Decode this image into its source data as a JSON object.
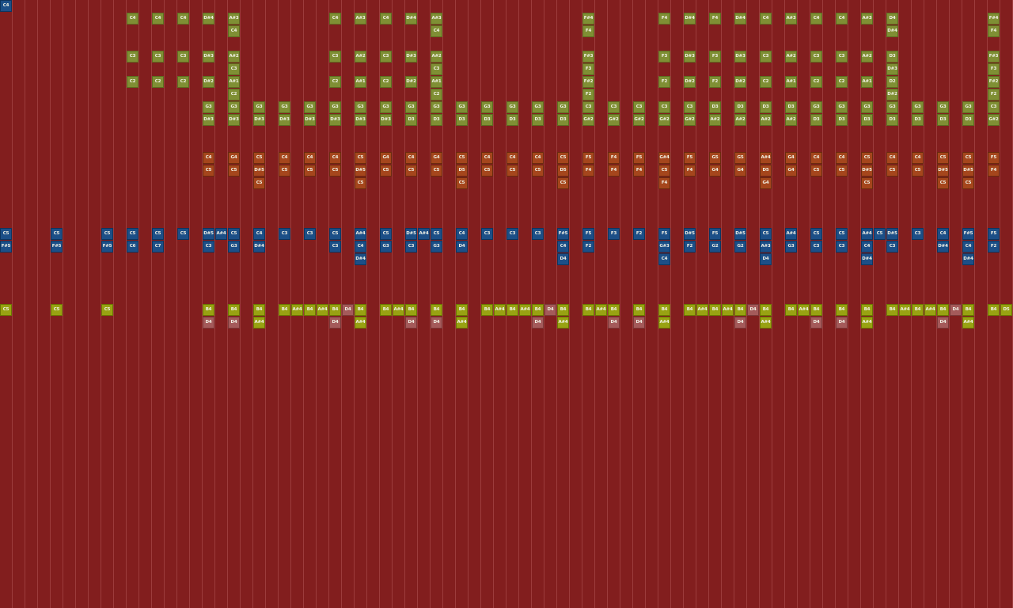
{
  "colors": {
    "background": "#821e1e",
    "green": "#7f8f34",
    "orange": "#a5461c",
    "blue": "#1c4f87",
    "yellow": "#98a212",
    "pink": "#a45a5a"
  },
  "lanes": [
    {
      "lane": 0,
      "kind": "blue",
      "cells": {
        "0": "C4"
      }
    },
    {
      "lane": 1,
      "kind": "green",
      "cells": {
        "10": "C4",
        "12": "C4",
        "14": "C4",
        "16": "D#4",
        "18": "A#3",
        "26": "C4",
        "28": "A#3",
        "30": "C4",
        "32": "D#4",
        "34": "A#3",
        "46": "F#4",
        "52": "F4",
        "54": "D#4",
        "56": "F4",
        "58": "D#4",
        "60": "C4",
        "62": "A#3",
        "64": "C4",
        "66": "C4",
        "68": "A#3",
        "70": "D4",
        "78": "F#4"
      }
    },
    {
      "lane": 2,
      "kind": "green",
      "cells": {
        "18": "C4",
        "34": "C4",
        "46": "F4",
        "70": "D#4",
        "78": "F4"
      }
    },
    {
      "lane": 4,
      "kind": "green",
      "cells": {
        "10": "C3",
        "12": "C3",
        "14": "C3",
        "16": "D#3",
        "18": "A#2",
        "26": "C3",
        "28": "A#2",
        "30": "C3",
        "32": "D#3",
        "34": "A#2",
        "46": "F#3",
        "52": "F3",
        "54": "D#3",
        "56": "F3",
        "58": "D#3",
        "60": "C3",
        "62": "A#2",
        "64": "C3",
        "66": "C3",
        "68": "A#2",
        "70": "D3",
        "78": "F#3"
      }
    },
    {
      "lane": 5,
      "kind": "green",
      "cells": {
        "18": "C3",
        "34": "C3",
        "46": "F3",
        "70": "D#3",
        "78": "F3"
      }
    },
    {
      "lane": 6,
      "kind": "green",
      "cells": {
        "10": "C2",
        "12": "C2",
        "14": "C2",
        "16": "D#2",
        "18": "A#1",
        "26": "C2",
        "28": "A#1",
        "30": "C2",
        "32": "D#2",
        "34": "A#1",
        "46": "F#2",
        "52": "F2",
        "54": "D#2",
        "56": "F2",
        "58": "D#2",
        "60": "C2",
        "62": "A#1",
        "64": "C2",
        "66": "C2",
        "68": "A#1",
        "70": "D2",
        "78": "F#2"
      }
    },
    {
      "lane": 7,
      "kind": "green",
      "cells": {
        "18": "C2",
        "34": "C2",
        "46": "F2",
        "70": "D#2",
        "78": "F2"
      }
    },
    {
      "lane": 8,
      "kind": "green",
      "cells": {
        "16": "G3",
        "18": "G3",
        "20": "G3",
        "22": "G3",
        "24": "G3",
        "26": "G3",
        "28": "G3",
        "30": "G3",
        "32": "G3",
        "34": "G3",
        "36": "G3",
        "38": "G3",
        "40": "G3",
        "42": "G3",
        "44": "G3",
        "46": "C3",
        "48": "C3",
        "50": "C3",
        "52": "C3",
        "54": "C3",
        "56": "D3",
        "58": "D3",
        "60": "D3",
        "62": "D3",
        "64": "G3",
        "66": "G3",
        "68": "G3",
        "70": "G3",
        "72": "G3",
        "74": "G3",
        "76": "G3",
        "78": "C3"
      }
    },
    {
      "lane": 9,
      "kind": "green",
      "cells": {
        "16": "D#3",
        "18": "D#3",
        "20": "D#3",
        "22": "D#3",
        "24": "D#3",
        "26": "D#3",
        "28": "D#3",
        "30": "D#3",
        "32": "D3",
        "34": "D3",
        "36": "D3",
        "38": "D3",
        "40": "D3",
        "42": "D3",
        "44": "D3",
        "46": "G#2",
        "48": "G#2",
        "50": "G#2",
        "52": "G#2",
        "54": "G#2",
        "56": "A#2",
        "58": "A#2",
        "60": "A#2",
        "62": "A#2",
        "64": "D3",
        "66": "D3",
        "68": "D3",
        "70": "D3",
        "72": "D3",
        "74": "D3",
        "76": "D3",
        "78": "G#2"
      }
    },
    {
      "lane": 12,
      "kind": "orange",
      "cells": {
        "16": "C4",
        "18": "G4",
        "20": "C5",
        "22": "C4",
        "24": "C4",
        "26": "C4",
        "28": "C5",
        "30": "G4",
        "32": "C4",
        "34": "G4",
        "36": "C5",
        "38": "C4",
        "40": "C4",
        "42": "C4",
        "44": "C5",
        "46": "F5",
        "48": "F4",
        "50": "F5",
        "52": "G#4",
        "54": "F5",
        "56": "G5",
        "58": "G5",
        "60": "A#4",
        "62": "G4",
        "64": "C4",
        "66": "C4",
        "68": "C5",
        "70": "C4",
        "72": "C4",
        "74": "C5",
        "76": "C5",
        "78": "F5"
      }
    },
    {
      "lane": 13,
      "kind": "orange",
      "cells": {
        "16": "C5",
        "18": "C5",
        "20": "D#5",
        "22": "C5",
        "24": "C5",
        "26": "C5",
        "28": "D#5",
        "30": "C5",
        "32": "C5",
        "34": "C5",
        "36": "D5",
        "38": "C5",
        "40": "C5",
        "42": "C5",
        "44": "D5",
        "46": "F4",
        "48": "F4",
        "50": "F4",
        "52": "C5",
        "54": "F4",
        "56": "G4",
        "58": "G4",
        "60": "D5",
        "62": "G4",
        "64": "C5",
        "66": "C5",
        "68": "D#5",
        "70": "C5",
        "72": "C5",
        "74": "D#5",
        "76": "D#5",
        "78": "F4"
      }
    },
    {
      "lane": 14,
      "kind": "orange",
      "cells": {
        "20": "C5",
        "28": "C5",
        "36": "C5",
        "44": "C5",
        "52": "F4",
        "60": "G4",
        "68": "C5",
        "74": "C5",
        "76": "C5"
      }
    },
    {
      "lane": 18,
      "kind": "blue",
      "cells": {
        "0": "C5",
        "4": "C5",
        "8": "C5",
        "10": "C5",
        "12": "C5",
        "14": "C5",
        "16": "D#5",
        "17": "A#4",
        "18": "C5",
        "20": "C4",
        "22": "C3",
        "24": "C3",
        "26": "C5",
        "28": "A#4",
        "30": "C5",
        "32": "D#5",
        "33": "A#4",
        "34": "C5",
        "36": "C4",
        "38": "C3",
        "40": "C3",
        "42": "C3",
        "44": "F#5",
        "46": "F5",
        "48": "F3",
        "50": "F2",
        "52": "F5",
        "54": "D#5",
        "56": "F5",
        "58": "D#5",
        "60": "C5",
        "62": "A#4",
        "64": "C5",
        "66": "C5",
        "68": "A#4",
        "69": "C5",
        "70": "D#5",
        "72": "C3",
        "74": "C4",
        "76": "F#5",
        "78": "F5"
      }
    },
    {
      "lane": 19,
      "kind": "blue",
      "cells": {
        "0": "F#5",
        "4": "F#5",
        "8": "F#5",
        "10": "C6",
        "12": "C7",
        "16": "C3",
        "18": "G3",
        "20": "D#4",
        "26": "C3",
        "28": "C4",
        "30": "G3",
        "32": "C3",
        "34": "G3",
        "36": "D4",
        "44": "C4",
        "46": "F2",
        "52": "G#3",
        "54": "F2",
        "56": "G2",
        "58": "G2",
        "60": "A#3",
        "62": "G3",
        "64": "C3",
        "66": "C3",
        "68": "C4",
        "70": "C3",
        "74": "D#4",
        "76": "C4",
        "78": "F2"
      }
    },
    {
      "lane": 20,
      "kind": "blue",
      "cells": {
        "28": "D#4",
        "44": "D4",
        "52": "C4",
        "60": "D4",
        "68": "D#4",
        "76": "D#4"
      }
    },
    {
      "lane": 24,
      "kind": "yellow",
      "cells": {
        "0": "C5",
        "4": "C5",
        "8": "C5",
        "16": "B4",
        "18": "B4",
        "20": "B4",
        "22": "B4",
        "23": "A#4",
        "24": "B4",
        "25": "A#4",
        "26": "B4",
        "27": "D4",
        "28": "B4",
        "30": "B4",
        "31": "A#4",
        "32": "B4",
        "34": "B4",
        "36": "B4",
        "38": "B4",
        "39": "A#4",
        "40": "B4",
        "41": "A#4",
        "42": "B4",
        "43": "D4",
        "44": "B4",
        "46": "B4",
        "47": "A#4",
        "48": "B4",
        "50": "B4",
        "52": "B4",
        "54": "B4",
        "55": "A#4",
        "56": "B4",
        "57": "A#4",
        "58": "B4",
        "59": "D4",
        "60": "B4",
        "62": "B4",
        "63": "A#4",
        "64": "B4",
        "66": "B4",
        "68": "B4",
        "70": "B4",
        "71": "A#4",
        "72": "B4",
        "73": "A#4",
        "74": "B4",
        "75": "D4",
        "76": "B4",
        "78": "B4",
        "79": "D5"
      },
      "pink_steps": [
        "27",
        "43",
        "59",
        "75"
      ]
    },
    {
      "lane": 25,
      "kind": "pink",
      "cells": {
        "16": "D4",
        "18": "D4",
        "20": "A#4",
        "26": "D4",
        "28": "A#4",
        "32": "D4",
        "34": "D4",
        "36": "A#4",
        "42": "D4",
        "44": "A#4",
        "48": "D4",
        "50": "D4",
        "52": "A#4",
        "58": "D4",
        "60": "A#4",
        "64": "D4",
        "66": "D4",
        "68": "A#4",
        "74": "D4",
        "76": "A#4"
      },
      "yellow_steps": [
        "20",
        "28",
        "36",
        "44",
        "52",
        "60",
        "68",
        "76"
      ]
    }
  ]
}
